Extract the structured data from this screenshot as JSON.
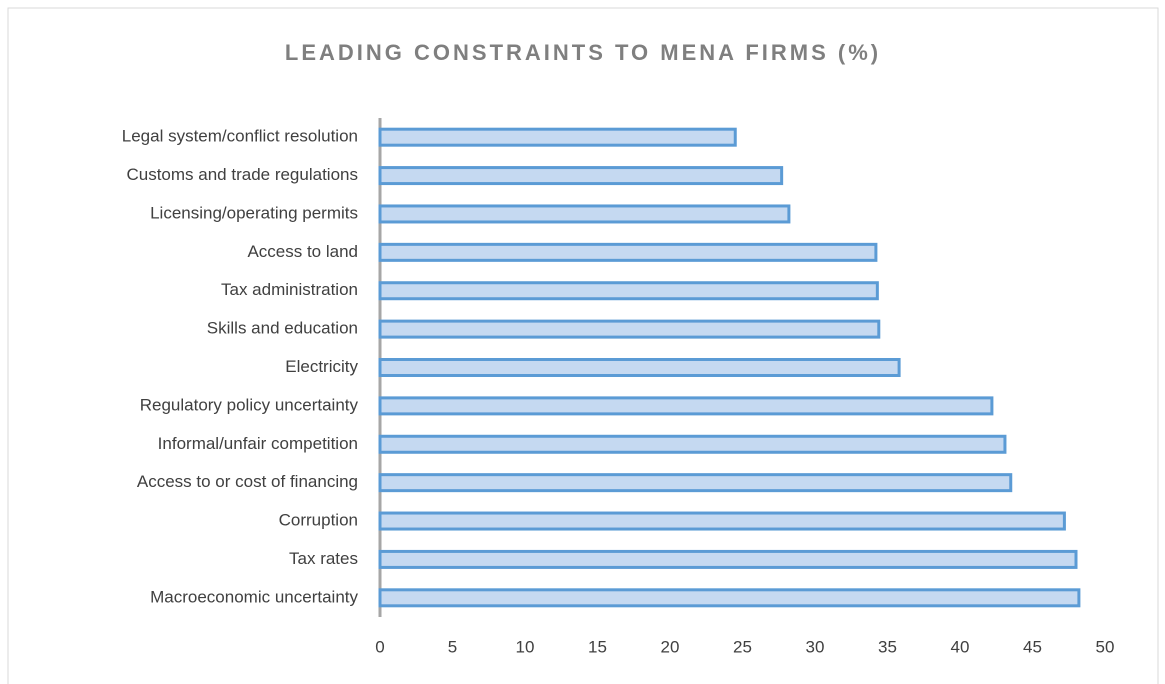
{
  "chart_data": {
    "type": "hbar",
    "title": "LEADING CONSTRAINTS TO MENA FIRMS (%)",
    "categories": [
      "Legal system/conflict resolution",
      "Customs and trade regulations",
      "Licensing/operating permits",
      "Access to land",
      "Tax administration",
      "Skills and education",
      "Electricity",
      "Regulatory policy uncertainty",
      "Informal/unfair competition",
      "Access to or cost of financing",
      "Corruption",
      "Tax rates",
      "Macroeconomic uncertainty"
    ],
    "values": [
      24.5,
      27.7,
      28.2,
      34.2,
      34.3,
      34.4,
      35.8,
      42.2,
      43.1,
      43.5,
      47.2,
      48.0,
      48.2
    ],
    "color": "#c5d9f1",
    "edge_color": "#5b9bd5",
    "xlim": [
      0,
      50
    ],
    "xticks": [
      0,
      5,
      10,
      15,
      20,
      25,
      30,
      35,
      40,
      45,
      50
    ],
    "grid": false
  }
}
